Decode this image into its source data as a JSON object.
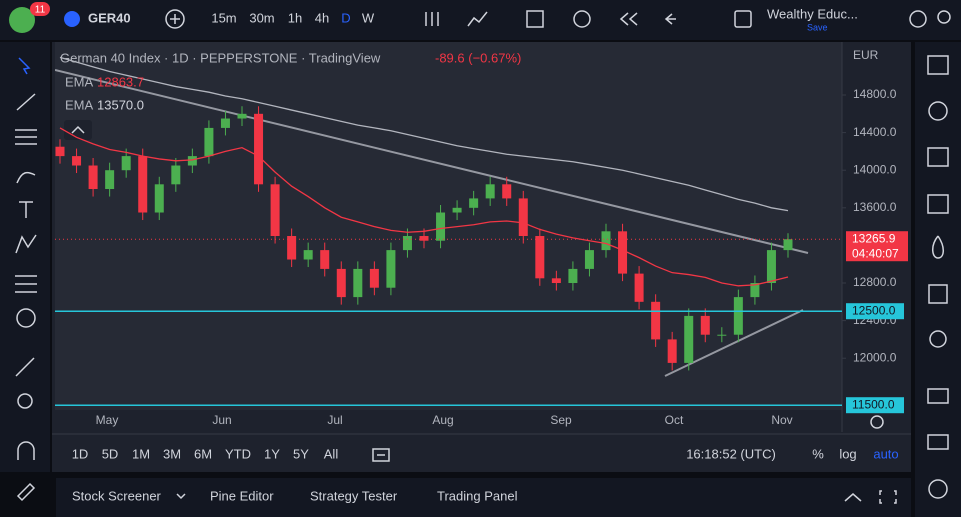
{
  "toolbar": {
    "badge": "11",
    "symbol": "GER40",
    "intervals": [
      "15m",
      "30m",
      "1h",
      "4h",
      "D",
      "W"
    ],
    "layout_name": "Wealthy Educ...",
    "save": "Save"
  },
  "chart_data": {
    "type": "candlestick",
    "title": "German 40 Index · 1D · PEPPERSTONE · TradingView",
    "change": "-89.6 (−0.67%)",
    "currency": "EUR",
    "up_color": "#4caf50",
    "down_color": "#f23645",
    "open": [
      14250,
      14150,
      14050,
      13800,
      14000,
      14150,
      13550,
      13850,
      14050,
      14150,
      14450,
      14550,
      14600,
      13850,
      13300,
      13050,
      13150,
      12950,
      12650,
      12950,
      12750,
      13150,
      13300,
      13250,
      13550,
      13600,
      13700,
      13850,
      13700,
      13300,
      12850,
      12800,
      12950,
      13150,
      13350,
      12900,
      12600,
      12200,
      11950,
      12450,
      12250,
      12250,
      12650,
      12800,
      13150
    ],
    "high": [
      14330,
      14230,
      14130,
      14080,
      14230,
      14230,
      13930,
      14130,
      14230,
      14530,
      14630,
      14680,
      14680,
      13930,
      13380,
      13230,
      13230,
      13030,
      13030,
      13030,
      13230,
      13380,
      13380,
      13630,
      13680,
      13780,
      13930,
      13930,
      13780,
      13380,
      12930,
      13030,
      13230,
      13430,
      13430,
      12980,
      12680,
      12280,
      12530,
      12530,
      12330,
      12730,
      12880,
      13230,
      13330
    ],
    "low": [
      14070,
      13970,
      13720,
      13720,
      13920,
      13470,
      13470,
      13770,
      13970,
      14070,
      14370,
      14470,
      13770,
      13220,
      12970,
      12970,
      12870,
      12570,
      12570,
      12670,
      12670,
      13070,
      13170,
      13170,
      13470,
      13520,
      13620,
      13620,
      13220,
      12770,
      12720,
      12720,
      12870,
      13070,
      12820,
      12520,
      12120,
      11870,
      11870,
      12170,
      12170,
      12170,
      12570,
      12720,
      13070
    ],
    "close": [
      14150,
      14050,
      13800,
      14000,
      14150,
      13550,
      13850,
      14050,
      14150,
      14450,
      14550,
      14600,
      13850,
      13300,
      13050,
      13150,
      12950,
      12650,
      12950,
      12750,
      13150,
      13300,
      13250,
      13550,
      13600,
      13700,
      13850,
      13700,
      13300,
      12850,
      12800,
      12950,
      13150,
      13350,
      12900,
      12600,
      12200,
      11950,
      12450,
      12250,
      12250,
      12650,
      12800,
      13150,
      13265.9
    ],
    "indicators": [
      {
        "name": "EMA",
        "legend_label": "12863.7",
        "color": "#f23645",
        "values": [
          14450,
          14350,
          14280,
          14220,
          14190,
          14150,
          14120,
          14100,
          14110,
          14150,
          14200,
          14240,
          14150,
          13980,
          13830,
          13720,
          13600,
          13500,
          13450,
          13400,
          13360,
          13340,
          13350,
          13380,
          13400,
          13420,
          13450,
          13460,
          13440,
          13370,
          13320,
          13280,
          13250,
          13220,
          13150,
          13070,
          12980,
          12910,
          12890,
          12860,
          12800,
          12770,
          12780,
          12820,
          12863.7
        ]
      },
      {
        "name": "EMA",
        "legend_label": "13570.0",
        "color": "#b2b5be",
        "values": [
          15200,
          15150,
          15100,
          15050,
          15010,
          14970,
          14930,
          14890,
          14860,
          14830,
          14790,
          14760,
          14720,
          14680,
          14640,
          14600,
          14560,
          14520,
          14480,
          14450,
          14420,
          14380,
          14340,
          14300,
          14260,
          14230,
          14200,
          14170,
          14150,
          14130,
          14110,
          14090,
          14060,
          14030,
          14000,
          13960,
          13920,
          13880,
          13840,
          13790,
          13740,
          13690,
          13650,
          13600,
          13570
        ]
      }
    ],
    "ylim": [
      11449,
      15364
    ],
    "yticks": [
      {
        "value": 14800,
        "label": "14800.0"
      },
      {
        "value": 14400,
        "label": "14400.0"
      },
      {
        "value": 14000,
        "label": "14000.0"
      },
      {
        "value": 13600,
        "label": "13600.0"
      },
      {
        "value": 12800,
        "label": "12800.0"
      },
      {
        "value": 12400,
        "label": "12400.0"
      },
      {
        "value": 12000,
        "label": "12000.0"
      }
    ],
    "hlines": [
      {
        "value": 12500,
        "label": "12500.0",
        "color": "#26c6da"
      },
      {
        "value": 11500,
        "label": "11500.0",
        "color": "#26c6da"
      }
    ],
    "countdown": "04:40:07",
    "months": [
      "May",
      "Jun",
      "Jul",
      "Aug",
      "Sep",
      "Oct",
      "Nov"
    ]
  },
  "range_bar": {
    "ranges": [
      "1D",
      "5D",
      "1M",
      "3M",
      "6M",
      "YTD",
      "1Y",
      "5Y",
      "All"
    ],
    "clock": "16:18:52 (UTC)",
    "options": [
      "%",
      "log",
      "auto"
    ]
  },
  "bottom_panel": {
    "tabs": [
      "Stock Screener",
      "Pine Editor",
      "Strategy Tester",
      "Trading Panel"
    ]
  }
}
